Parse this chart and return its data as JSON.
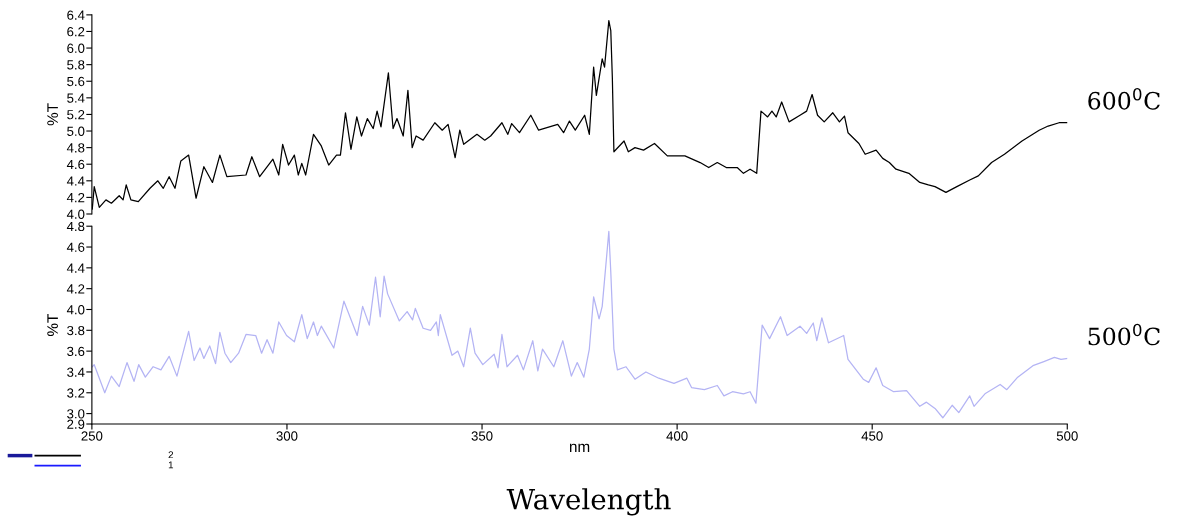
{
  "chart_data": [
    {
      "type": "line",
      "ylabel": "%T",
      "xlim": [
        250,
        500
      ],
      "ylim": [
        4.0,
        6.4
      ],
      "yticks": [
        {
          "value": 4,
          "label": "4.0"
        },
        4.2,
        4.4,
        4.6,
        4.8,
        {
          "value": 5,
          "label": "5.0"
        },
        5.2,
        5.4,
        5.6,
        5.8,
        {
          "value": 6,
          "label": "6.0"
        },
        6.2,
        6.4
      ],
      "tick_labels": "y",
      "grid": false,
      "legend": false,
      "series": [
        {
          "name": "600$^{0}$C",
          "color": "#000000",
          "x": [
            250.1,
            250.6,
            251.9,
            253.6,
            255.0,
            257.0,
            258.0,
            258.8,
            260.0,
            261.9,
            264.9,
            266.9,
            268.3,
            269.8,
            271.3,
            272.8,
            274.8,
            276.7,
            278.7,
            280.9,
            282.8,
            284.6,
            289.5,
            291.0,
            293.0,
            296.4,
            297.9,
            298.9,
            300.4,
            301.9,
            302.9,
            303.8,
            304.8,
            306.8,
            308.8,
            310.7,
            312.7,
            313.7,
            315.0,
            316.4,
            317.9,
            319.1,
            320.6,
            322.1,
            323.1,
            324.1,
            326.0,
            327.2,
            328.2,
            329.8,
            331.0,
            332.1,
            333.1,
            334.9,
            337.9,
            339.8,
            341.3,
            343.1,
            344.3,
            345.3,
            348.7,
            350.7,
            352.2,
            355.1,
            356.6,
            357.6,
            359.6,
            362.5,
            364.5,
            369.4,
            370.9,
            372.4,
            373.9,
            376.3,
            377.5,
            378.6,
            379.3,
            380.8,
            381.4,
            382.5,
            383.0,
            383.4,
            383.8,
            386.4,
            387.5,
            389.2,
            391.4,
            394.2,
            397.5,
            402.0,
            405.9,
            408.1,
            410.3,
            412.6,
            415.4,
            417.0,
            418.7,
            420.4,
            421.5,
            423.2,
            424.3,
            425.4,
            426.8,
            428.7,
            431.5,
            433.2,
            434.6,
            436.0,
            437.7,
            439.9,
            441.6,
            442.9,
            443.8,
            446.6,
            448.2,
            451.0,
            452.7,
            454.4,
            456.1,
            459.4,
            462.2,
            464.4,
            466.1,
            468.9,
            471.7,
            475.0,
            477.2,
            480.6,
            483.9,
            488.4,
            492.8,
            495.1,
            497.9,
            500.0
          ],
          "values": [
            4.06,
            4.33,
            4.08,
            4.17,
            4.13,
            4.22,
            4.17,
            4.35,
            4.17,
            4.15,
            4.31,
            4.4,
            4.31,
            4.45,
            4.31,
            4.64,
            4.71,
            4.19,
            4.57,
            4.38,
            4.71,
            4.45,
            4.47,
            4.69,
            4.45,
            4.66,
            4.47,
            4.84,
            4.59,
            4.71,
            4.47,
            4.61,
            4.47,
            4.96,
            4.82,
            4.59,
            4.71,
            4.71,
            5.22,
            4.78,
            5.17,
            4.94,
            5.15,
            5.03,
            5.24,
            5.05,
            5.7,
            5.03,
            5.15,
            4.94,
            5.49,
            4.8,
            4.94,
            4.89,
            5.1,
            5.01,
            5.08,
            4.68,
            5.01,
            4.84,
            4.96,
            4.89,
            4.94,
            5.1,
            4.96,
            5.09,
            4.98,
            5.19,
            5.01,
            5.08,
            4.98,
            5.12,
            5.01,
            5.19,
            4.96,
            5.77,
            5.43,
            5.87,
            5.77,
            6.33,
            6.21,
            5.64,
            4.75,
            4.88,
            4.75,
            4.8,
            4.77,
            4.85,
            4.7,
            4.7,
            4.62,
            4.56,
            4.62,
            4.56,
            4.56,
            4.49,
            4.54,
            4.49,
            5.24,
            5.17,
            5.24,
            5.17,
            5.35,
            5.11,
            5.19,
            5.24,
            5.44,
            5.19,
            5.11,
            5.22,
            5.11,
            5.18,
            4.98,
            4.85,
            4.72,
            4.77,
            4.67,
            4.62,
            4.54,
            4.49,
            4.38,
            4.35,
            4.33,
            4.26,
            4.33,
            4.41,
            4.46,
            4.62,
            4.72,
            4.88,
            5.01,
            5.06,
            5.1,
            5.1
          ]
        }
      ]
    },
    {
      "type": "line",
      "ylabel": "%T",
      "xlabel": "nm",
      "xlim": [
        250,
        500
      ],
      "xticks": [
        250,
        300,
        350,
        400,
        450,
        500
      ],
      "ylim": [
        2.9,
        4.8
      ],
      "yticks": [
        2.9,
        {
          "value": 3,
          "label": "3.0"
        },
        3.2,
        3.4,
        3.6,
        3.8,
        {
          "value": 4,
          "label": "4.0"
        },
        4.2,
        4.4,
        4.6,
        4.8
      ],
      "grid": false,
      "legend": false,
      "annotations": [
        "2",
        "1",
        "Wavelength"
      ],
      "series": [
        {
          "name": "500$^{0}$C",
          "color": "#b4b4f4",
          "x": [
            250.1,
            250.6,
            253.3,
            255.0,
            257.0,
            259.0,
            260.8,
            262.0,
            263.7,
            265.7,
            267.7,
            269.8,
            271.8,
            274.8,
            276.2,
            277.7,
            278.7,
            280.2,
            281.7,
            282.8,
            284.1,
            285.6,
            287.6,
            289.5,
            292.0,
            293.5,
            294.9,
            296.4,
            297.9,
            299.9,
            301.9,
            303.8,
            305.2,
            306.8,
            307.8,
            308.8,
            312.0,
            314.6,
            318.0,
            319.4,
            321.1,
            322.7,
            323.9,
            324.9,
            325.8,
            328.8,
            330.8,
            332.2,
            332.9,
            334.9,
            336.8,
            338.3,
            338.8,
            339.3,
            342.3,
            343.8,
            345.3,
            347.0,
            348.2,
            350.2,
            353.1,
            354.1,
            355.1,
            356.4,
            359.1,
            360.6,
            363.0,
            364.3,
            365.5,
            368.4,
            370.7,
            372.9,
            374.4,
            376.1,
            377.5,
            378.6,
            380.0,
            380.8,
            382.5,
            383.0,
            383.8,
            384.7,
            386.9,
            389.2,
            392.0,
            395.3,
            399.2,
            402.5,
            403.7,
            407.0,
            410.3,
            412.0,
            414.2,
            417.0,
            418.7,
            420.2,
            421.8,
            423.7,
            426.5,
            428.2,
            431.5,
            433.2,
            434.9,
            435.8,
            437.1,
            438.8,
            442.7,
            443.8,
            447.7,
            449.1,
            451.0,
            452.7,
            455.5,
            458.8,
            462.2,
            463.9,
            466.1,
            468.1,
            470.5,
            472.2,
            475.0,
            476.1,
            478.9,
            482.8,
            484.5,
            487.3,
            491.2,
            494.0,
            496.7,
            498.4,
            500.0
          ],
          "values": [
            3.45,
            3.47,
            3.2,
            3.36,
            3.26,
            3.49,
            3.31,
            3.47,
            3.35,
            3.45,
            3.42,
            3.55,
            3.36,
            3.79,
            3.51,
            3.63,
            3.53,
            3.65,
            3.48,
            3.78,
            3.58,
            3.49,
            3.58,
            3.76,
            3.75,
            3.58,
            3.71,
            3.58,
            3.88,
            3.75,
            3.69,
            3.95,
            3.72,
            3.88,
            3.75,
            3.84,
            3.63,
            4.08,
            3.75,
            4.03,
            3.85,
            4.31,
            3.93,
            4.32,
            4.15,
            3.89,
            3.98,
            3.9,
            4.01,
            3.82,
            3.8,
            3.88,
            3.75,
            3.95,
            3.56,
            3.6,
            3.45,
            3.82,
            3.58,
            3.47,
            3.57,
            3.44,
            3.76,
            3.45,
            3.56,
            3.42,
            3.7,
            3.41,
            3.62,
            3.45,
            3.7,
            3.36,
            3.49,
            3.35,
            3.62,
            4.12,
            3.91,
            4.03,
            4.75,
            4.36,
            3.62,
            3.42,
            3.45,
            3.33,
            3.4,
            3.34,
            3.29,
            3.34,
            3.25,
            3.23,
            3.27,
            3.17,
            3.21,
            3.19,
            3.21,
            3.1,
            3.85,
            3.72,
            3.93,
            3.75,
            3.84,
            3.77,
            3.87,
            3.7,
            3.92,
            3.68,
            3.75,
            3.52,
            3.33,
            3.3,
            3.44,
            3.27,
            3.21,
            3.22,
            3.07,
            3.11,
            3.05,
            2.96,
            3.08,
            3.01,
            3.17,
            3.07,
            3.19,
            3.28,
            3.23,
            3.35,
            3.46,
            3.5,
            3.54,
            3.52,
            3.53
          ]
        }
      ]
    }
  ]
}
